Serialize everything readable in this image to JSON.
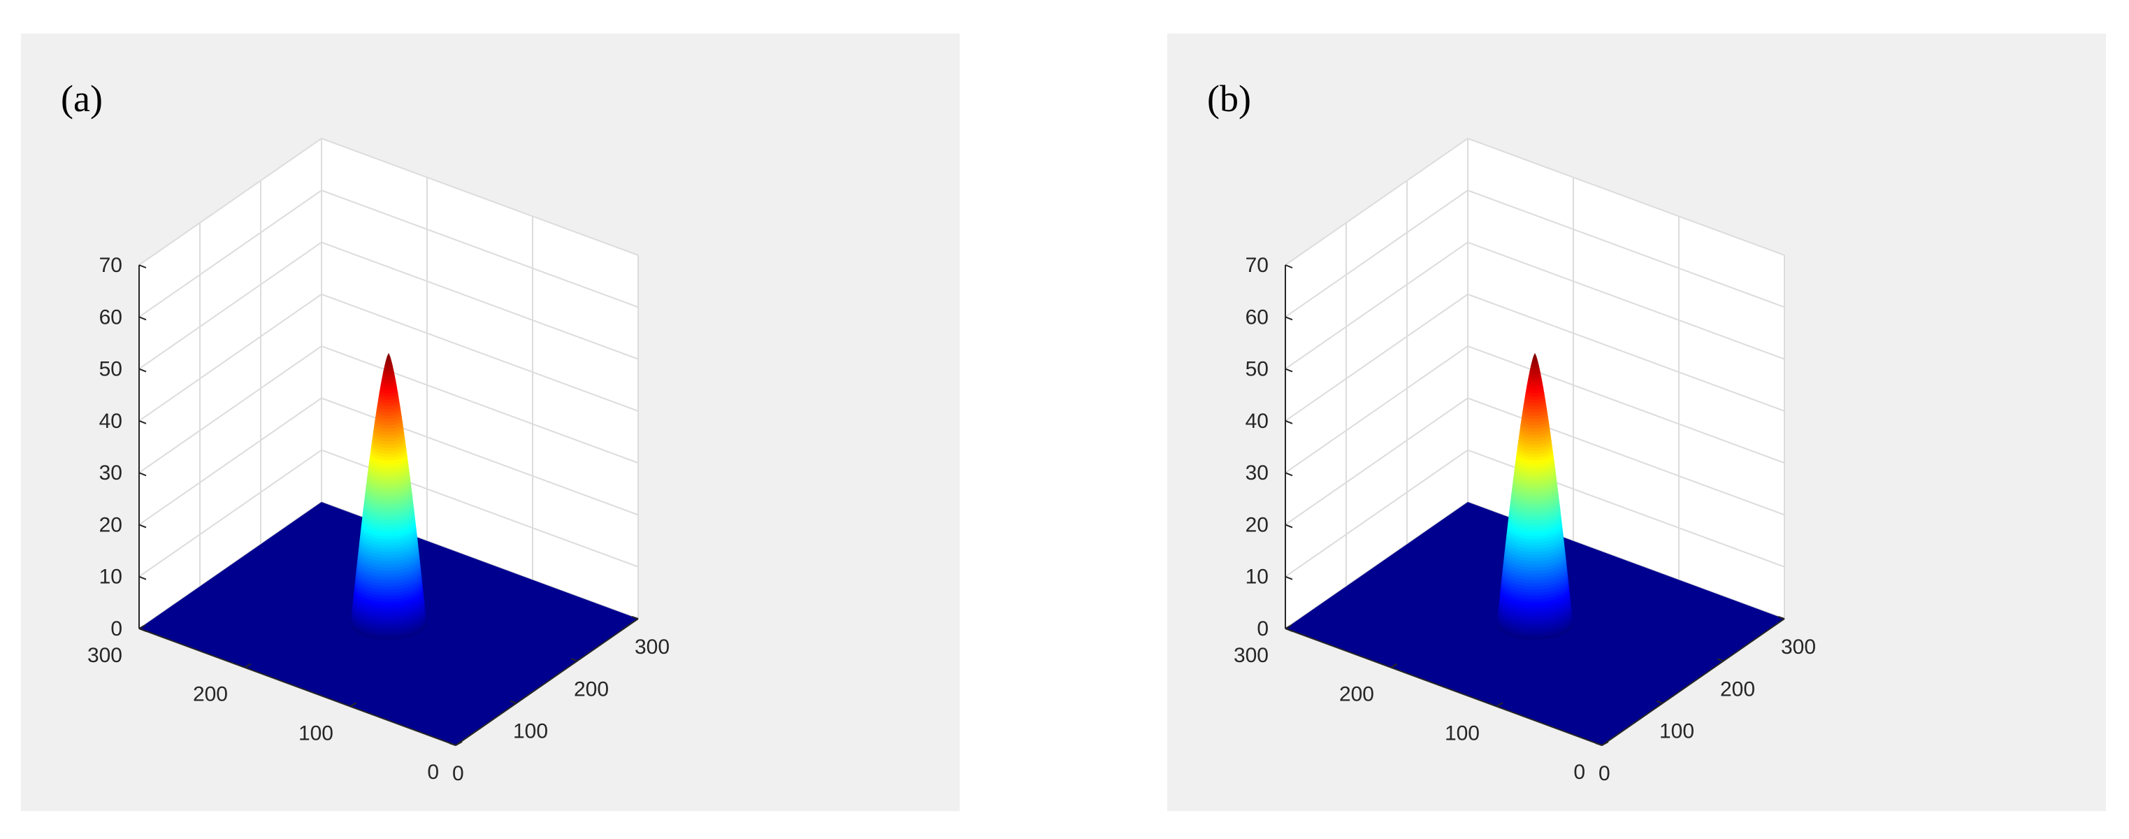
{
  "chart_data": [
    {
      "type": "surface",
      "panel_label": "(a)",
      "xlim": [
        0,
        300
      ],
      "ylim": [
        0,
        300
      ],
      "zlim": [
        0,
        70
      ],
      "x_ticks": [
        0,
        100,
        200,
        300
      ],
      "y_ticks": [
        0,
        100,
        200,
        300
      ],
      "z_ticks": [
        0,
        10,
        20,
        30,
        40,
        50,
        60,
        70
      ],
      "grid": true,
      "colormap": "jet",
      "peak": {
        "x": 150,
        "y": 150,
        "z": 52
      },
      "base_z": 0,
      "colors": {
        "floor": "#00008f",
        "panel_background": "#f0f0f0",
        "axes_background": "#ffffff",
        "grid": "#dcdcdc"
      }
    },
    {
      "type": "surface",
      "panel_label": "(b)",
      "xlim": [
        0,
        300
      ],
      "ylim": [
        0,
        300
      ],
      "zlim": [
        0,
        70
      ],
      "x_ticks": [
        0,
        100,
        200,
        300
      ],
      "y_ticks": [
        0,
        100,
        200,
        300
      ],
      "z_ticks": [
        0,
        10,
        20,
        30,
        40,
        50,
        60,
        70
      ],
      "grid": true,
      "colormap": "jet",
      "peak": {
        "x": 150,
        "y": 150,
        "z": 52
      },
      "base_z": 0,
      "colors": {
        "floor": "#00008f",
        "panel_background": "#f0f0f0",
        "axes_background": "#ffffff",
        "grid": "#dcdcdc"
      }
    }
  ]
}
